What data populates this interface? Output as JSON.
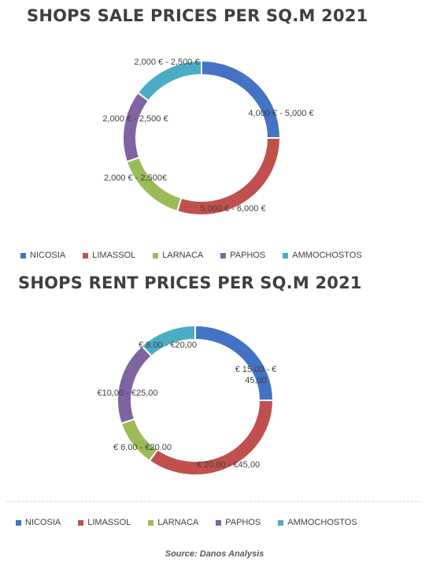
{
  "chart_data": [
    {
      "type": "pie",
      "title": "SHOPS SALE PRICES PER SQ.M 2021",
      "categories": [
        "NICOSIA",
        "LIMASSOL",
        "LARNACA",
        "PAPHOS",
        "AMMOCHOSTOS"
      ],
      "values": [
        25,
        30,
        15,
        15,
        15
      ],
      "data_labels": [
        "4,000 € - 5,000 €",
        "5,000 € - 6,000 €",
        "2,000 € - 2,500€",
        "2,000 € - 2,500 €",
        "2,000 € - 2,500 €"
      ],
      "colors": [
        "#4472c4",
        "#c0504d",
        "#9bbb59",
        "#8064a2",
        "#4bacc6"
      ],
      "legend": "bottom"
    },
    {
      "type": "pie",
      "title": "SHOPS RENT PRICES PER SQ.M 2021",
      "categories": [
        "NICOSIA",
        "LIMASSOL",
        "LARNACA",
        "PAPHOS",
        "AMMOCHOSTOS"
      ],
      "values": [
        25,
        35,
        10,
        18,
        12
      ],
      "data_labels": [
        [
          "€ 15.00  - €",
          "45,00"
        ],
        [
          "€ 20.00 - €45,00"
        ],
        [
          "€ 6.00 - €20.00"
        ],
        [
          "€10,00 - €25,00"
        ],
        [
          "€ 8.00 - €20,00"
        ]
      ],
      "colors": [
        "#4472c4",
        "#c0504d",
        "#9bbb59",
        "#8064a2",
        "#4bacc6"
      ],
      "legend": "bottom"
    }
  ],
  "source": "Source: Danos Analysis"
}
